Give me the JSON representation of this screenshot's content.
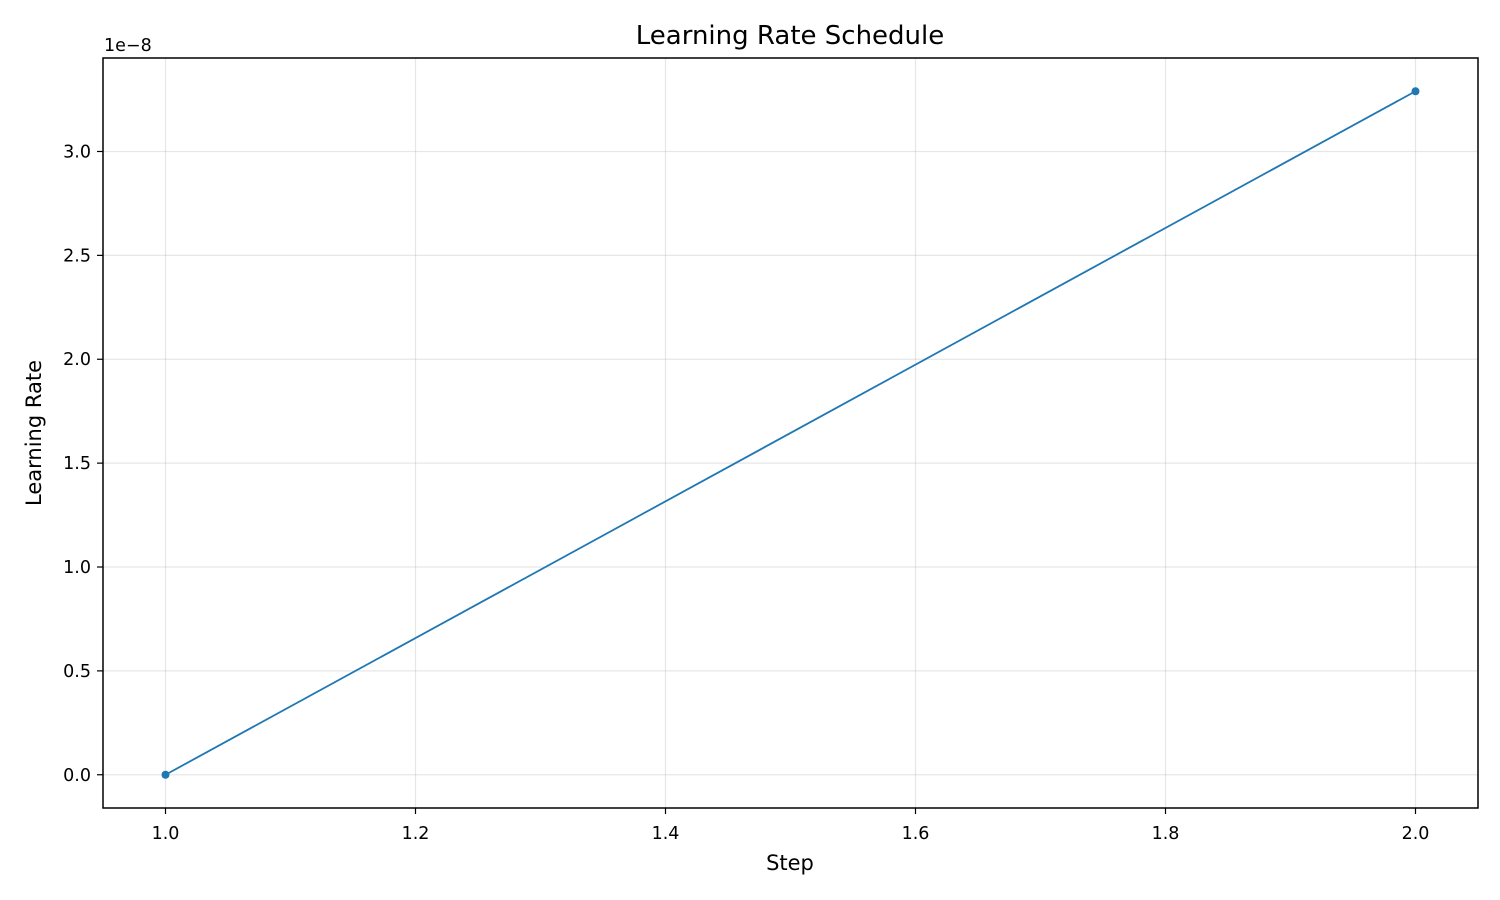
{
  "chart_data": {
    "type": "line",
    "title": "Learning Rate Schedule",
    "xlabel": "Step",
    "ylabel": "Learning Rate",
    "y_offset_label": "1e−8",
    "xlim": [
      0.95,
      2.05
    ],
    "ylim": [
      -0.16,
      3.45
    ],
    "x_ticks": [
      1.0,
      1.2,
      1.4,
      1.6,
      1.8,
      2.0
    ],
    "x_tick_labels": [
      "1.0",
      "1.2",
      "1.4",
      "1.6",
      "1.8",
      "2.0"
    ],
    "y_ticks": [
      0.0,
      0.5,
      1.0,
      1.5,
      2.0,
      2.5,
      3.0
    ],
    "y_tick_labels": [
      "0.0",
      "0.5",
      "1.0",
      "1.5",
      "2.0",
      "2.5",
      "3.0"
    ],
    "grid": true,
    "series": [
      {
        "x": [
          1.0,
          2.0
        ],
        "y": [
          0.0,
          3.29
        ],
        "color": "#1f77b4",
        "marker": "circle"
      }
    ]
  }
}
